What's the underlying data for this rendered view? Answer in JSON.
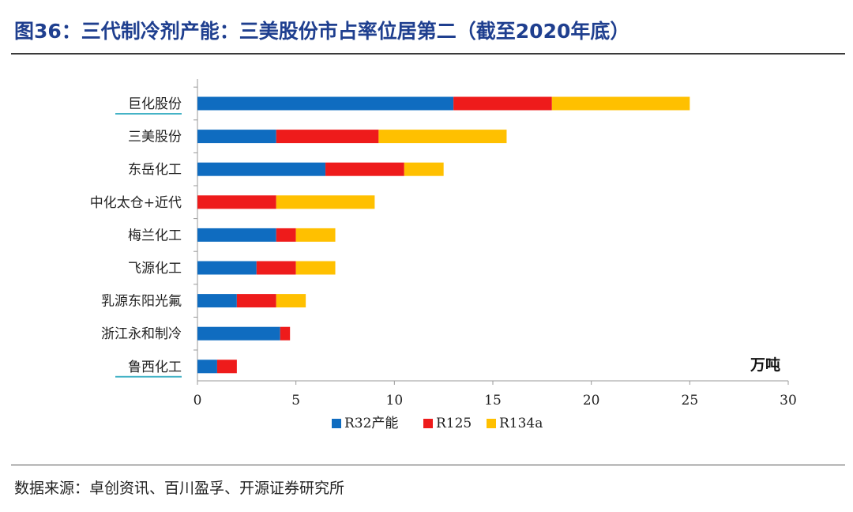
{
  "header": {
    "title": "图36：三代制冷剂产能：三美股份市占率位居第二（截至2020年底）"
  },
  "footer": {
    "source": "数据来源：卓创资讯、百川盈孚、开源证券研究所"
  },
  "colors": {
    "title": "#1f3f8f",
    "accent_underline": "#45b3c6",
    "r32": "#0f6cc0",
    "r125": "#ee1b1b",
    "r134a": "#ffc000"
  },
  "chart_data": {
    "type": "bar",
    "orientation": "horizontal",
    "stacked": true,
    "categories": [
      "巨化股份",
      "三美股份",
      "东岳化工",
      "中化太仓+近代",
      "梅兰化工",
      "飞源化工",
      "乳源东阳光氟",
      "浙江永和制冷",
      "鲁西化工"
    ],
    "series": [
      {
        "name": "R32产能",
        "values": [
          13,
          4,
          6.5,
          0,
          4,
          3,
          2,
          4.2,
          1
        ]
      },
      {
        "name": "R125",
        "values": [
          5,
          5.2,
          4,
          4,
          1,
          2,
          2,
          0.5,
          1
        ]
      },
      {
        "name": "R134a",
        "values": [
          7,
          6.5,
          2,
          5,
          2,
          2,
          1.5,
          0,
          0
        ]
      }
    ],
    "unit": "万吨",
    "xlim": [
      0,
      30
    ],
    "xticks": [
      0,
      5,
      10,
      15,
      20,
      25,
      30
    ],
    "legend": "bottom",
    "grid": false
  }
}
